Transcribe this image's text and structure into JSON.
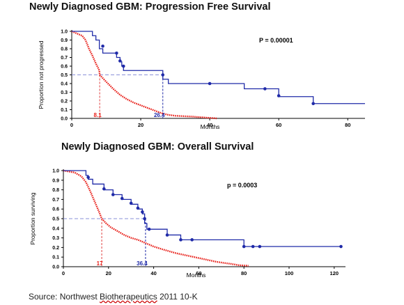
{
  "source": {
    "before": "Source: Northwest ",
    "underlined": "Biotherapeutics",
    "after": " 2011 10-K"
  },
  "colors": {
    "treated": "#1f2aa8",
    "control": "#e8201a",
    "dash_blue": "#8a90d8",
    "dash_red": "#e04040"
  },
  "chart_data": [
    {
      "type": "line",
      "title": "Newly Diagnosed GBM:  Progression Free Survival",
      "xlabel": "Months",
      "ylabel": "Proportion not progressed",
      "xlim": [
        0,
        85
      ],
      "ylim": [
        0,
        1.0
      ],
      "x_ticks": [
        0,
        20,
        40,
        60,
        80
      ],
      "y_ticks": [
        0.0,
        0.1,
        0.2,
        0.3,
        0.4,
        0.5,
        0.6,
        0.7,
        0.8,
        0.9,
        1.0
      ],
      "p_value": "P = 0.00001",
      "median_treated_label": "26.4",
      "median_control_label": "8.1",
      "median_treated": 26.4,
      "median_control": 8.1,
      "series": [
        {
          "role": "treated",
          "points": [
            [
              0,
              1.0
            ],
            [
              6,
              1.0
            ],
            [
              6,
              0.95
            ],
            [
              7,
              0.95
            ],
            [
              7,
              0.9
            ],
            [
              8,
              0.9
            ],
            [
              8,
              0.8
            ],
            [
              9,
              0.8
            ],
            [
              9,
              0.75
            ],
            [
              13,
              0.75
            ],
            [
              13,
              0.7
            ],
            [
              14,
              0.7
            ],
            [
              14,
              0.65
            ],
            [
              14.5,
              0.65
            ],
            [
              14.5,
              0.6
            ],
            [
              15,
              0.6
            ],
            [
              15,
              0.55
            ],
            [
              26.4,
              0.55
            ],
            [
              26.4,
              0.45
            ],
            [
              28,
              0.45
            ],
            [
              28,
              0.4
            ],
            [
              50,
              0.4
            ],
            [
              50,
              0.34
            ],
            [
              60,
              0.34
            ],
            [
              60,
              0.25
            ],
            [
              70,
              0.25
            ],
            [
              70,
              0.17
            ],
            [
              85,
              0.17
            ]
          ],
          "censor": [
            [
              9,
              0.83
            ],
            [
              13,
              0.75
            ],
            [
              14,
              0.66
            ],
            [
              15,
              0.6
            ],
            [
              26.4,
              0.5
            ],
            [
              40,
              0.4
            ],
            [
              56,
              0.34
            ],
            [
              60,
              0.26
            ],
            [
              70,
              0.17
            ]
          ]
        },
        {
          "role": "control",
          "points": [
            [
              0,
              1.0
            ],
            [
              3,
              0.95
            ],
            [
              4,
              0.9
            ],
            [
              5,
              0.8
            ],
            [
              6,
              0.72
            ],
            [
              7,
              0.63
            ],
            [
              8,
              0.55
            ],
            [
              8.1,
              0.5
            ],
            [
              10,
              0.42
            ],
            [
              12,
              0.34
            ],
            [
              14,
              0.27
            ],
            [
              16,
              0.22
            ],
            [
              18,
              0.18
            ],
            [
              20,
              0.15
            ],
            [
              22,
              0.12
            ],
            [
              24,
              0.09
            ],
            [
              26,
              0.06
            ],
            [
              28,
              0.04
            ],
            [
              30,
              0.03
            ],
            [
              35,
              0.02
            ],
            [
              42,
              0.0
            ]
          ]
        }
      ]
    },
    {
      "type": "line",
      "title": "Newly Diagnosed GBM:  Overall Survival",
      "xlabel": "Months",
      "ylabel": "Proportion surviving",
      "xlim": [
        0,
        125
      ],
      "ylim": [
        0,
        1.0
      ],
      "x_ticks": [
        0,
        20,
        40,
        60,
        80,
        100,
        120
      ],
      "y_ticks": [
        0.0,
        0.1,
        0.2,
        0.3,
        0.4,
        0.5,
        0.6,
        0.7,
        0.8,
        0.9,
        1.0
      ],
      "p_value": "p = 0.0003",
      "median_treated_label": "36.4",
      "median_control_label": "17",
      "median_treated": 36.4,
      "median_control": 17,
      "series": [
        {
          "role": "treated",
          "points": [
            [
              0,
              1.0
            ],
            [
              10,
              1.0
            ],
            [
              10,
              0.95
            ],
            [
              11,
              0.95
            ],
            [
              11,
              0.91
            ],
            [
              13,
              0.91
            ],
            [
              13,
              0.86
            ],
            [
              18,
              0.86
            ],
            [
              18,
              0.8
            ],
            [
              22,
              0.8
            ],
            [
              22,
              0.75
            ],
            [
              26,
              0.75
            ],
            [
              26,
              0.7
            ],
            [
              30,
              0.7
            ],
            [
              30,
              0.65
            ],
            [
              33,
              0.65
            ],
            [
              33,
              0.6
            ],
            [
              35,
              0.6
            ],
            [
              35,
              0.55
            ],
            [
              36,
              0.55
            ],
            [
              36,
              0.45
            ],
            [
              37,
              0.45
            ],
            [
              37,
              0.39
            ],
            [
              46,
              0.39
            ],
            [
              46,
              0.33
            ],
            [
              52,
              0.33
            ],
            [
              52,
              0.28
            ],
            [
              80,
              0.28
            ],
            [
              80,
              0.21
            ],
            [
              123,
              0.21
            ]
          ],
          "censor": [
            [
              11,
              0.93
            ],
            [
              18,
              0.81
            ],
            [
              22,
              0.75
            ],
            [
              26,
              0.71
            ],
            [
              30,
              0.66
            ],
            [
              33,
              0.61
            ],
            [
              35,
              0.57
            ],
            [
              36,
              0.5
            ],
            [
              38,
              0.39
            ],
            [
              46,
              0.33
            ],
            [
              52,
              0.28
            ],
            [
              57,
              0.28
            ],
            [
              80,
              0.21
            ],
            [
              84,
              0.21
            ],
            [
              87,
              0.21
            ],
            [
              123,
              0.21
            ]
          ]
        },
        {
          "role": "control",
          "points": [
            [
              0,
              1.0
            ],
            [
              5,
              0.98
            ],
            [
              8,
              0.94
            ],
            [
              10,
              0.88
            ],
            [
              12,
              0.78
            ],
            [
              14,
              0.67
            ],
            [
              16,
              0.56
            ],
            [
              17,
              0.5
            ],
            [
              19,
              0.45
            ],
            [
              21,
              0.41
            ],
            [
              24,
              0.37
            ],
            [
              27,
              0.33
            ],
            [
              30,
              0.3
            ],
            [
              33,
              0.28
            ],
            [
              36,
              0.25
            ],
            [
              40,
              0.21
            ],
            [
              44,
              0.18
            ],
            [
              50,
              0.14
            ],
            [
              56,
              0.11
            ],
            [
              62,
              0.08
            ],
            [
              68,
              0.05
            ],
            [
              74,
              0.03
            ],
            [
              78,
              0.015
            ],
            [
              82,
              0.01
            ]
          ]
        }
      ]
    }
  ]
}
